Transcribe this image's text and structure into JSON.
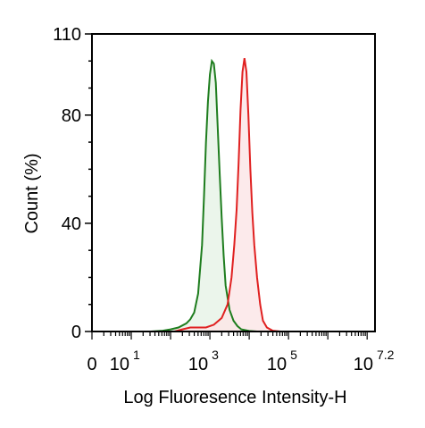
{
  "chart_data": {
    "type": "area",
    "title": "",
    "xlabel": "Log Fluoresence Intensity-H",
    "ylabel": "Count  (%)",
    "xscale": "log",
    "xlim": [
      0,
      7.2
    ],
    "ylim": [
      0,
      110
    ],
    "grid": false,
    "legend": "none",
    "x_ticks": [
      {
        "pos": 0,
        "base": "0",
        "exp": ""
      },
      {
        "pos": 1,
        "base": "10",
        "exp": "1"
      },
      {
        "pos": 3,
        "base": "10",
        "exp": "3"
      },
      {
        "pos": 5,
        "base": "10",
        "exp": "5"
      },
      {
        "pos": 7.2,
        "base": "10",
        "exp": "7.2"
      }
    ],
    "y_ticks": [
      {
        "value": 0,
        "label": "0"
      },
      {
        "value": 40,
        "label": "40"
      },
      {
        "value": 80,
        "label": "80"
      },
      {
        "value": 110,
        "label": "110"
      }
    ],
    "series": [
      {
        "color": "#1e7d1e",
        "fill": "#e8f3e8",
        "points": [
          [
            1.5,
            0
          ],
          [
            1.8,
            0.3
          ],
          [
            2.0,
            0.8
          ],
          [
            2.2,
            1.5
          ],
          [
            2.4,
            3
          ],
          [
            2.5,
            4.5
          ],
          [
            2.6,
            7
          ],
          [
            2.7,
            14
          ],
          [
            2.8,
            32
          ],
          [
            2.85,
            50
          ],
          [
            2.9,
            70
          ],
          [
            2.95,
            85
          ],
          [
            3.0,
            95
          ],
          [
            3.05,
            100
          ],
          [
            3.1,
            99
          ],
          [
            3.15,
            92
          ],
          [
            3.2,
            75
          ],
          [
            3.25,
            58
          ],
          [
            3.3,
            42
          ],
          [
            3.35,
            28
          ],
          [
            3.4,
            17
          ],
          [
            3.5,
            8
          ],
          [
            3.6,
            4
          ],
          [
            3.7,
            2
          ],
          [
            3.8,
            0.8
          ],
          [
            4.0,
            0.2
          ],
          [
            4.2,
            0
          ]
        ]
      },
      {
        "color": "#e02020",
        "fill": "#fbe6e8",
        "points": [
          [
            2.1,
            0
          ],
          [
            2.3,
            0.8
          ],
          [
            2.5,
            1.5
          ],
          [
            2.7,
            1.5
          ],
          [
            2.9,
            1.5
          ],
          [
            3.1,
            2.5
          ],
          [
            3.3,
            5
          ],
          [
            3.45,
            10
          ],
          [
            3.55,
            20
          ],
          [
            3.62,
            32
          ],
          [
            3.68,
            45
          ],
          [
            3.73,
            62
          ],
          [
            3.78,
            82
          ],
          [
            3.83,
            96
          ],
          [
            3.88,
            101
          ],
          [
            3.93,
            96
          ],
          [
            3.98,
            80
          ],
          [
            4.03,
            60
          ],
          [
            4.08,
            44
          ],
          [
            4.13,
            32
          ],
          [
            4.2,
            20
          ],
          [
            4.28,
            10
          ],
          [
            4.35,
            4
          ],
          [
            4.45,
            1.5
          ],
          [
            4.6,
            0.3
          ],
          [
            4.8,
            0
          ]
        ]
      }
    ]
  }
}
